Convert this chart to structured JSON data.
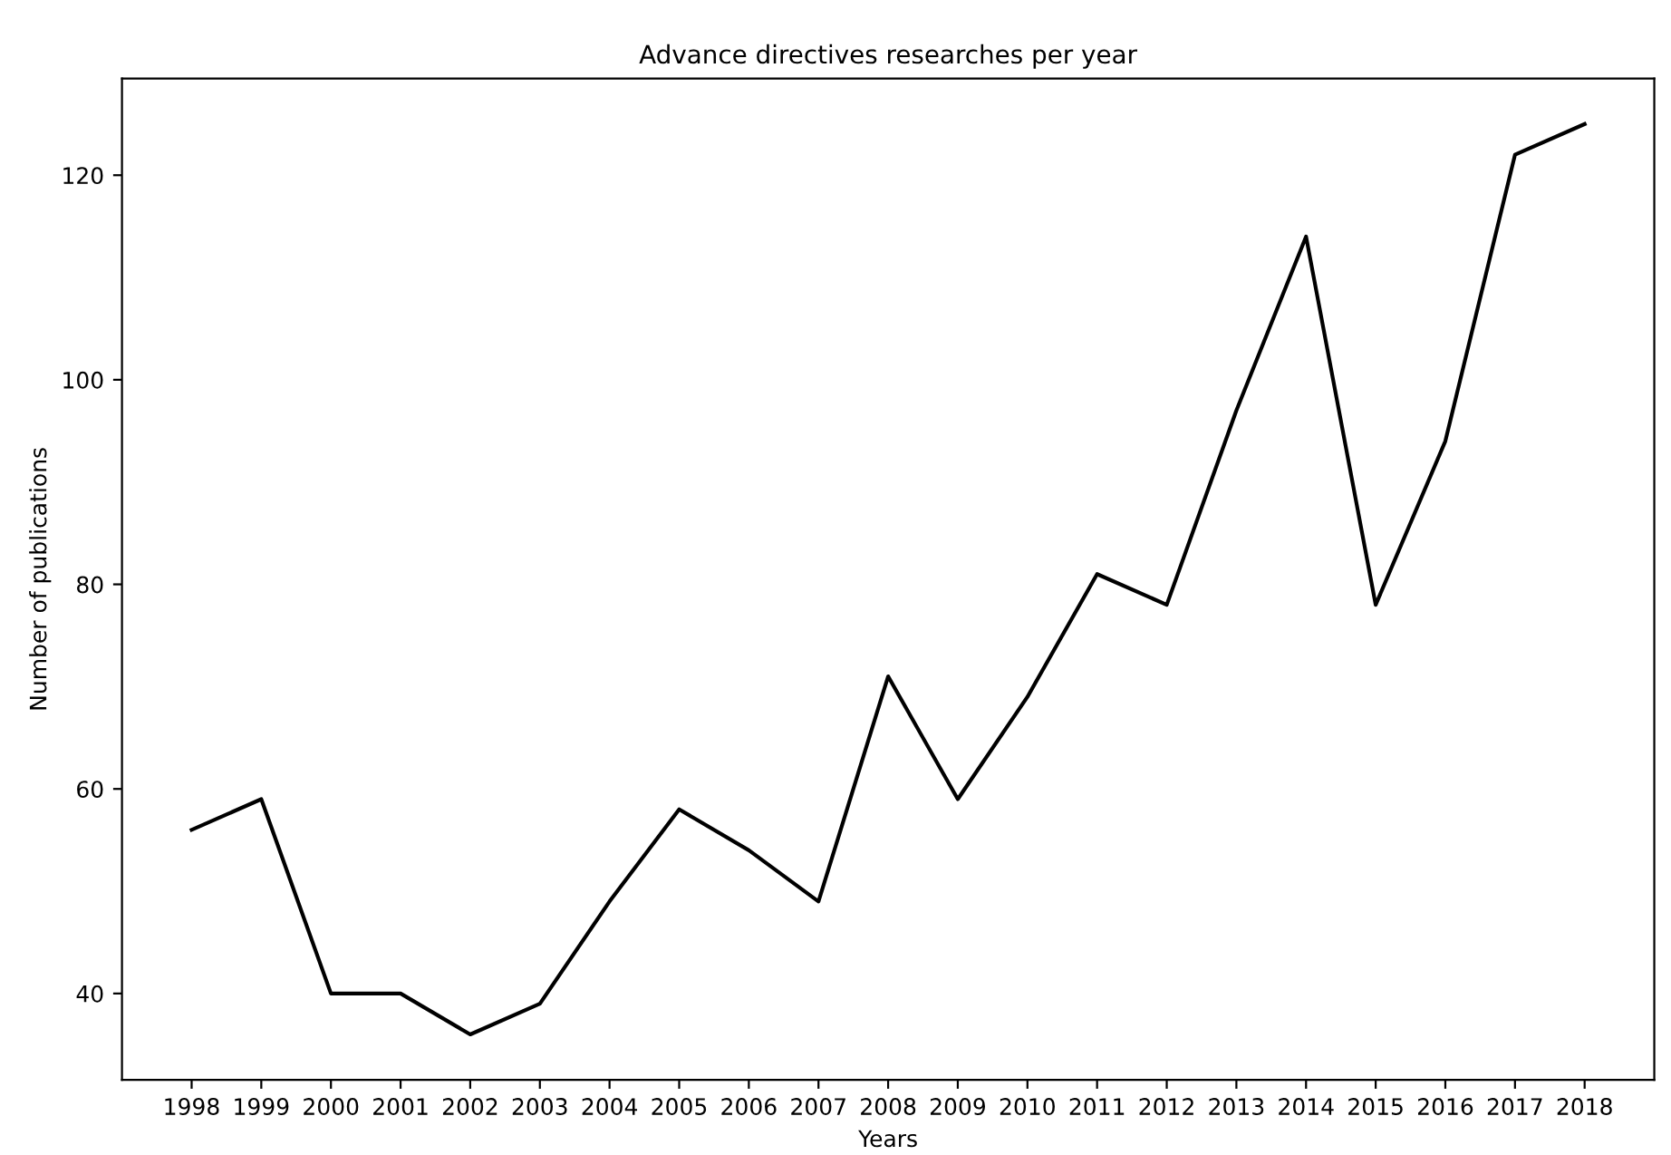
{
  "chart_data": {
    "type": "line",
    "title": "Advance directives researches per year",
    "xlabel": "Years",
    "ylabel": "Number of publications",
    "categories": [
      "1998",
      "1999",
      "2000",
      "2001",
      "2002",
      "2003",
      "2004",
      "2005",
      "2006",
      "2007",
      "2008",
      "2009",
      "2010",
      "2011",
      "2012",
      "2013",
      "2014",
      "2015",
      "2016",
      "2017",
      "2018"
    ],
    "series": [
      {
        "color": "#000000",
        "values": [
          56,
          59,
          40,
          40,
          36,
          39,
          49,
          58,
          54,
          49,
          71,
          59,
          69,
          81,
          78,
          97,
          114,
          78,
          94,
          122,
          125
        ]
      }
    ],
    "ylim": [
      31.55,
      129.45
    ],
    "yticks": [
      40,
      60,
      80,
      100,
      120
    ],
    "grid": false,
    "legend": false,
    "marker": "none",
    "line_style": "solid"
  }
}
